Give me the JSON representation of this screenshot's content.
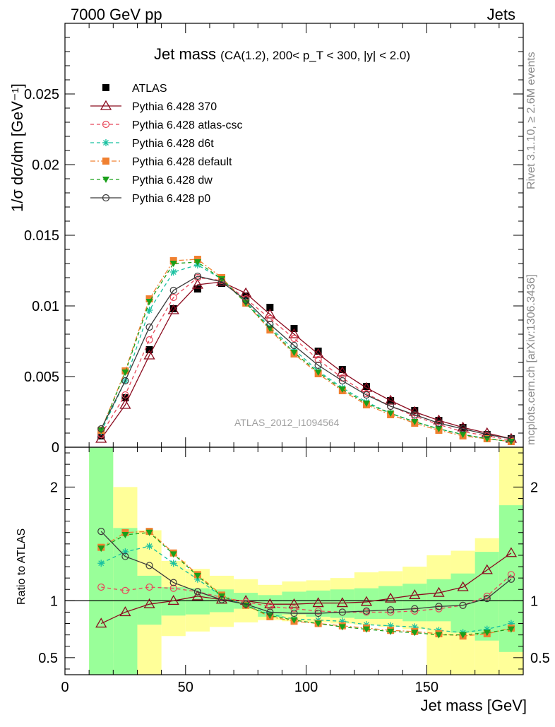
{
  "header": {
    "left": "7000 GeV pp",
    "right": "Jets"
  },
  "side_text": {
    "rivet": "Rivet 3.1.10, ≥ 2.6M events",
    "mcplots": "mcplots.cern.ch [arXiv:1306.3436]"
  },
  "watermark": "ATLAS_2012_I1094564",
  "title": {
    "main": "Jet mass",
    "sub": "(CA(1.2), 200< p_T < 300, |y| < 2.0)"
  },
  "ylabel_main": "1/σ dσ/dm [GeV⁻¹]",
  "ylabel_ratio": "Ratio to ATLAS",
  "xlabel": "Jet mass [GeV]",
  "colors": {
    "ATLAS": "#000000",
    "Pythia 6.428 370": "#8b0a1e",
    "Pythia 6.428 atlas-csc": "#e8485a",
    "Pythia 6.428 d6t": "#18c0a0",
    "Pythia 6.428 default": "#f08030",
    "Pythia 6.428 dw": "#1aa01a",
    "Pythia 6.428 p0": "#3a3a3a",
    "band_outer": "#ffff99",
    "band_inner": "#99ff99"
  },
  "chart_data": [
    {
      "type": "line",
      "panel": "main",
      "title": "Jet mass",
      "xlabel": "",
      "ylabel": "1/σ dσ/dm [GeV⁻¹]",
      "xlim": [
        0,
        190
      ],
      "ylim": [
        0,
        0.03
      ],
      "yticks": [
        0,
        0.005,
        0.01,
        0.015,
        0.02,
        0.025
      ],
      "ytick_labels": [
        "0",
        "0.005",
        "0.01",
        "0.015",
        "0.02",
        "0.025"
      ],
      "xticks": [
        0,
        50,
        100,
        150
      ],
      "x": [
        15,
        25,
        35,
        45,
        55,
        65,
        75,
        85,
        95,
        105,
        115,
        125,
        135,
        145,
        155,
        165,
        175,
        185
      ],
      "legend_position": "top-left",
      "series": [
        {
          "name": "ATLAS",
          "marker": "square",
          "line": "none",
          "values": [
            0.0008,
            0.0035,
            0.0069,
            0.0098,
            0.0112,
            0.0116,
            0.0107,
            0.0099,
            0.0084,
            0.0068,
            0.0055,
            0.0043,
            0.0033,
            0.0026,
            0.0019,
            0.0014,
            0.0009,
            0.0006
          ]
        },
        {
          "name": "Pythia 6.428 370",
          "marker": "triangle-open",
          "line": "solid",
          "values": [
            0.0006,
            0.003,
            0.0065,
            0.0097,
            0.0115,
            0.0117,
            0.0109,
            0.0094,
            0.008,
            0.0066,
            0.0053,
            0.0042,
            0.0033,
            0.0025,
            0.0019,
            0.0014,
            0.001,
            0.0006
          ]
        },
        {
          "name": "Pythia 6.428 atlas-csc",
          "marker": "circle-open",
          "line": "dashed",
          "values": [
            0.0009,
            0.0037,
            0.0076,
            0.0106,
            0.012,
            0.0118,
            0.0105,
            0.0091,
            0.0077,
            0.0062,
            0.0049,
            0.0038,
            0.0029,
            0.0022,
            0.0016,
            0.0011,
            0.0008,
            0.0005
          ]
        },
        {
          "name": "Pythia 6.428 d6t",
          "marker": "star",
          "line": "dashed",
          "values": [
            0.0011,
            0.0047,
            0.0097,
            0.0124,
            0.0129,
            0.0119,
            0.0103,
            0.0085,
            0.0069,
            0.0054,
            0.0042,
            0.0032,
            0.0024,
            0.0018,
            0.0013,
            0.0009,
            0.0006,
            0.0004
          ]
        },
        {
          "name": "Pythia 6.428 default",
          "marker": "square",
          "line": "dashdot",
          "values": [
            0.0012,
            0.0054,
            0.0105,
            0.0132,
            0.0133,
            0.012,
            0.0102,
            0.0083,
            0.0066,
            0.0052,
            0.004,
            0.003,
            0.0023,
            0.0017,
            0.0012,
            0.0008,
            0.0006,
            0.0004
          ]
        },
        {
          "name": "Pythia 6.428 dw",
          "marker": "triangle-down",
          "line": "dashed",
          "values": [
            0.0012,
            0.0053,
            0.0103,
            0.013,
            0.0131,
            0.0119,
            0.0102,
            0.0084,
            0.0067,
            0.0053,
            0.0041,
            0.0031,
            0.0024,
            0.0018,
            0.0013,
            0.0009,
            0.0006,
            0.0004
          ]
        },
        {
          "name": "Pythia 6.428 p0",
          "marker": "circle-open",
          "line": "solid",
          "values": [
            0.0013,
            0.0047,
            0.0085,
            0.0111,
            0.0121,
            0.0117,
            0.0104,
            0.0087,
            0.0072,
            0.0058,
            0.0047,
            0.0037,
            0.0029,
            0.0023,
            0.0017,
            0.0013,
            0.0009,
            0.0006
          ]
        }
      ]
    },
    {
      "type": "line",
      "panel": "ratio",
      "ylabel": "Ratio to ATLAS",
      "xlabel": "Jet mass [GeV]",
      "xlim": [
        0,
        190
      ],
      "ylim": [
        0.35,
        2.35
      ],
      "yticks": [
        0.5,
        1,
        2
      ],
      "ytick_labels": [
        "0.5",
        "1",
        "2"
      ],
      "xticks": [
        0,
        50,
        100,
        150
      ],
      "xtick_labels": [
        "0",
        "50",
        "100",
        "150"
      ],
      "reference_line": 1,
      "bands": {
        "edges": [
          10,
          20,
          30,
          40,
          50,
          60,
          70,
          80,
          90,
          100,
          110,
          120,
          130,
          140,
          150,
          160,
          170,
          180,
          190
        ],
        "outer_low": [
          0.35,
          0.54,
          0.35,
          0.69,
          0.73,
          0.77,
          0.81,
          0.83,
          0.82,
          0.81,
          0.8,
          0.79,
          0.77,
          0.75,
          0.35,
          0.35,
          0.35,
          0.35
        ],
        "outer_high": [
          2.35,
          2.0,
          1.62,
          1.35,
          1.28,
          1.22,
          1.19,
          1.14,
          1.17,
          1.18,
          1.2,
          1.25,
          1.26,
          1.3,
          1.4,
          1.44,
          1.55,
          2.35
        ],
        "inner_low": [
          0.35,
          0.35,
          0.79,
          0.87,
          0.88,
          0.9,
          0.93,
          0.86,
          0.88,
          0.86,
          0.85,
          0.84,
          0.84,
          0.82,
          0.82,
          0.72,
          0.65,
          0.55
        ],
        "inner_high": [
          2.35,
          1.64,
          1.22,
          1.12,
          1.11,
          1.1,
          1.07,
          1.05,
          1.08,
          1.09,
          1.1,
          1.11,
          1.13,
          1.15,
          1.19,
          1.24,
          1.43,
          1.84
        ]
      },
      "x": [
        15,
        25,
        35,
        45,
        55,
        65,
        75,
        85,
        95,
        105,
        115,
        125,
        135,
        145,
        155,
        165,
        175,
        185
      ],
      "series": [
        {
          "name": "Pythia 6.428 370",
          "marker": "triangle-open",
          "line": "solid",
          "values": [
            0.8,
            0.9,
            0.97,
            1.0,
            1.04,
            1.01,
            1.0,
            0.97,
            0.97,
            0.98,
            0.98,
            0.99,
            1.02,
            1.05,
            1.07,
            1.12,
            1.27,
            1.42
          ]
        },
        {
          "name": "Pythia 6.428 atlas-csc",
          "marker": "circle-open",
          "line": "dashed",
          "values": [
            1.12,
            1.09,
            1.12,
            1.11,
            1.08,
            1.03,
            0.99,
            0.95,
            0.93,
            0.91,
            0.9,
            0.9,
            0.9,
            0.91,
            0.93,
            0.96,
            1.04,
            1.23
          ]
        },
        {
          "name": "Pythia 6.428 d6t",
          "marker": "star",
          "line": "dashed",
          "values": [
            1.33,
            1.43,
            1.48,
            1.33,
            1.19,
            1.04,
            0.96,
            0.88,
            0.84,
            0.83,
            0.82,
            0.79,
            0.78,
            0.77,
            0.74,
            0.72,
            0.75,
            0.8
          ]
        },
        {
          "name": "Pythia 6.428 default",
          "marker": "square",
          "line": "dashdot",
          "values": [
            1.47,
            1.6,
            1.61,
            1.42,
            1.23,
            1.05,
            0.96,
            0.86,
            0.82,
            0.8,
            0.78,
            0.76,
            0.74,
            0.73,
            0.71,
            0.69,
            0.71,
            0.76
          ]
        },
        {
          "name": "Pythia 6.428 dw",
          "marker": "triangle-down",
          "line": "dashed",
          "values": [
            1.46,
            1.58,
            1.6,
            1.41,
            1.22,
            1.04,
            0.96,
            0.87,
            0.83,
            0.8,
            0.77,
            0.75,
            0.73,
            0.72,
            0.7,
            0.7,
            0.72,
            0.75
          ]
        },
        {
          "name": "Pythia 6.428 p0",
          "marker": "circle-open",
          "line": "solid",
          "values": [
            1.61,
            1.39,
            1.31,
            1.16,
            1.08,
            1.01,
            0.97,
            0.9,
            0.89,
            0.89,
            0.9,
            0.91,
            0.92,
            0.93,
            0.95,
            0.96,
            1.02,
            1.19
          ]
        }
      ]
    }
  ]
}
